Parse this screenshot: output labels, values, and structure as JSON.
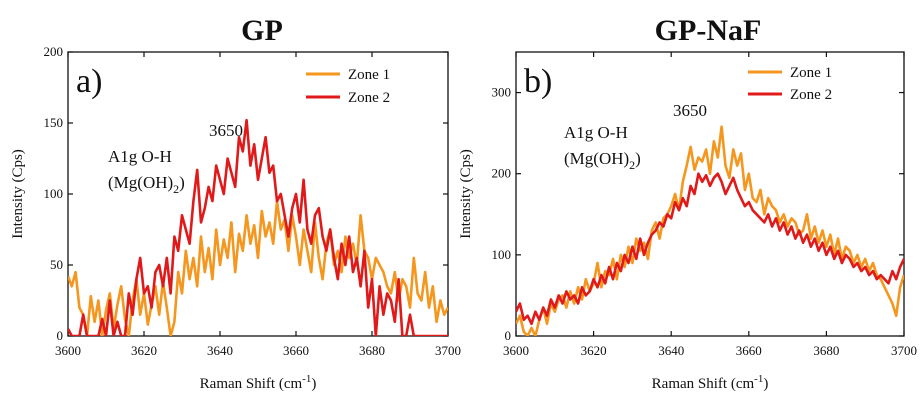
{
  "chart_data": [
    {
      "type": "line",
      "title": "GP",
      "panel_label": "a)",
      "xlabel": "Raman Shift (cm",
      "xlabel_sup": "-1",
      "xlabel_end": ")",
      "ylabel": "Intensity (Cps)",
      "xlim": [
        3600,
        3700
      ],
      "ylim": [
        0,
        200
      ],
      "xticks": [
        3600,
        3620,
        3640,
        3660,
        3680,
        3700
      ],
      "yticks": [
        0,
        50,
        100,
        150,
        200
      ],
      "legend_position": "top-right",
      "annotation_peak": "3650",
      "annotation_line1": "A1g O-H",
      "annotation_line2": "(Mg(OH)",
      "annotation_sub": "2",
      "annotation_close": ")",
      "series": [
        {
          "name": "Zone 1",
          "color": "#f5961e",
          "x": [
            3600,
            3601,
            3602,
            3603,
            3604,
            3605,
            3606,
            3607,
            3608,
            3609,
            3610,
            3611,
            3612,
            3613,
            3614,
            3615,
            3616,
            3617,
            3618,
            3619,
            3620,
            3621,
            3622,
            3623,
            3624,
            3625,
            3626,
            3627,
            3628,
            3629,
            3630,
            3631,
            3632,
            3633,
            3634,
            3635,
            3636,
            3637,
            3638,
            3639,
            3640,
            3641,
            3642,
            3643,
            3644,
            3645,
            3646,
            3647,
            3648,
            3649,
            3650,
            3651,
            3652,
            3653,
            3654,
            3655,
            3656,
            3657,
            3658,
            3659,
            3660,
            3661,
            3662,
            3663,
            3664,
            3665,
            3666,
            3667,
            3668,
            3669,
            3670,
            3671,
            3672,
            3673,
            3674,
            3675,
            3676,
            3677,
            3678,
            3679,
            3680,
            3681,
            3682,
            3683,
            3684,
            3685,
            3686,
            3687,
            3688,
            3689,
            3690,
            3691,
            3692,
            3693,
            3694,
            3695,
            3696,
            3697,
            3698,
            3699,
            3700
          ],
          "values": [
            42,
            35,
            45,
            20,
            15,
            0,
            28,
            10,
            25,
            0,
            18,
            30,
            5,
            22,
            35,
            12,
            0,
            25,
            40,
            15,
            30,
            8,
            22,
            35,
            15,
            38,
            20,
            0,
            10,
            45,
            30,
            60,
            40,
            55,
            35,
            70,
            45,
            62,
            40,
            75,
            50,
            68,
            55,
            80,
            45,
            72,
            60,
            85,
            65,
            78,
            55,
            88,
            70,
            80,
            65,
            95,
            75,
            82,
            60,
            85,
            70,
            50,
            75,
            60,
            45,
            80,
            55,
            40,
            65,
            75,
            50,
            60,
            45,
            70,
            55,
            65,
            50,
            85,
            60,
            55,
            40,
            55,
            50,
            45,
            35,
            30,
            45,
            25,
            40,
            35,
            20,
            55,
            30,
            25,
            45,
            20,
            35,
            10,
            25,
            15,
            20
          ]
        },
        {
          "name": "Zone 2",
          "color": "#e01a1a",
          "x": [
            3600,
            3601,
            3602,
            3603,
            3604,
            3605,
            3606,
            3607,
            3608,
            3609,
            3610,
            3611,
            3612,
            3613,
            3614,
            3615,
            3616,
            3617,
            3618,
            3619,
            3620,
            3621,
            3622,
            3623,
            3624,
            3625,
            3626,
            3627,
            3628,
            3629,
            3630,
            3631,
            3632,
            3633,
            3634,
            3635,
            3636,
            3637,
            3638,
            3639,
            3640,
            3641,
            3642,
            3643,
            3644,
            3645,
            3646,
            3647,
            3648,
            3649,
            3650,
            3651,
            3652,
            3653,
            3654,
            3655,
            3656,
            3657,
            3658,
            3659,
            3660,
            3661,
            3662,
            3663,
            3664,
            3665,
            3666,
            3667,
            3668,
            3669,
            3670,
            3671,
            3672,
            3673,
            3674,
            3675,
            3676,
            3677,
            3678,
            3679,
            3680,
            3681,
            3682,
            3683,
            3684,
            3685,
            3686,
            3687,
            3688,
            3689,
            3690,
            3691,
            3692,
            3693,
            3694,
            3695,
            3696,
            3697,
            3698,
            3699,
            3700
          ],
          "values": [
            5,
            0,
            0,
            0,
            15,
            0,
            0,
            0,
            0,
            12,
            0,
            25,
            0,
            10,
            0,
            0,
            30,
            15,
            40,
            55,
            30,
            35,
            20,
            45,
            50,
            35,
            55,
            30,
            70,
            60,
            85,
            75,
            65,
            95,
            117,
            80,
            90,
            105,
            95,
            120,
            110,
            100,
            125,
            115,
            105,
            140,
            130,
            152,
            120,
            135,
            110,
            125,
            140,
            115,
            120,
            95,
            100,
            85,
            70,
            90,
            100,
            80,
            110,
            75,
            65,
            85,
            90,
            70,
            60,
            75,
            55,
            40,
            65,
            50,
            70,
            45,
            55,
            35,
            60,
            20,
            40,
            0,
            35,
            15,
            30,
            25,
            10,
            40,
            0,
            0,
            15,
            0,
            0,
            0,
            0,
            0,
            0,
            0,
            0,
            0,
            0
          ]
        }
      ]
    },
    {
      "type": "line",
      "title": "GP-NaF",
      "panel_label": "b)",
      "xlabel": "Raman Shift (cm",
      "xlabel_sup": "-1",
      "xlabel_end": ")",
      "ylabel": "Intensity (Cps)",
      "xlim": [
        3600,
        3700
      ],
      "ylim": [
        0,
        350
      ],
      "xticks": [
        3600,
        3620,
        3640,
        3660,
        3680,
        3700
      ],
      "yticks": [
        0,
        100,
        200,
        300
      ],
      "legend_position": "top-right",
      "annotation_peak": "3650",
      "annotation_line1": "A1g O-H",
      "annotation_line2": "(Mg(OH)",
      "annotation_sub": "2",
      "annotation_close": ")",
      "series": [
        {
          "name": "Zone 1",
          "color": "#f5961e",
          "x": [
            3600,
            3601,
            3602,
            3603,
            3604,
            3605,
            3606,
            3607,
            3608,
            3609,
            3610,
            3611,
            3612,
            3613,
            3614,
            3615,
            3616,
            3617,
            3618,
            3619,
            3620,
            3621,
            3622,
            3623,
            3624,
            3625,
            3626,
            3627,
            3628,
            3629,
            3630,
            3631,
            3632,
            3633,
            3634,
            3635,
            3636,
            3637,
            3638,
            3639,
            3640,
            3641,
            3642,
            3643,
            3644,
            3645,
            3646,
            3647,
            3648,
            3649,
            3650,
            3651,
            3652,
            3653,
            3654,
            3655,
            3656,
            3657,
            3658,
            3659,
            3660,
            3661,
            3662,
            3663,
            3664,
            3665,
            3666,
            3667,
            3668,
            3669,
            3670,
            3671,
            3672,
            3673,
            3674,
            3675,
            3676,
            3677,
            3678,
            3679,
            3680,
            3681,
            3682,
            3683,
            3684,
            3685,
            3686,
            3687,
            3688,
            3689,
            3690,
            3691,
            3692,
            3693,
            3694,
            3695,
            3696,
            3697,
            3698,
            3699,
            3700
          ],
          "values": [
            15,
            25,
            5,
            0,
            10,
            0,
            20,
            35,
            15,
            40,
            30,
            45,
            50,
            35,
            55,
            40,
            60,
            45,
            70,
            55,
            65,
            90,
            60,
            80,
            75,
            95,
            70,
            100,
            85,
            110,
            90,
            120,
            105,
            115,
            95,
            130,
            140,
            120,
            145,
            150,
            160,
            175,
            155,
            190,
            210,
            233,
            205,
            220,
            215,
            230,
            200,
            240,
            220,
            258,
            210,
            195,
            230,
            210,
            225,
            180,
            200,
            170,
            165,
            180,
            150,
            170,
            160,
            155,
            140,
            150,
            135,
            145,
            140,
            125,
            130,
            150,
            120,
            135,
            115,
            130,
            110,
            125,
            100,
            120,
            95,
            110,
            105,
            90,
            100,
            85,
            95,
            80,
            90,
            75,
            70,
            60,
            50,
            40,
            25,
            60,
            75
          ]
        },
        {
          "name": "Zone 2",
          "color": "#e01a1a",
          "x": [
            3600,
            3601,
            3602,
            3603,
            3604,
            3605,
            3606,
            3607,
            3608,
            3609,
            3610,
            3611,
            3612,
            3613,
            3614,
            3615,
            3616,
            3617,
            3618,
            3619,
            3620,
            3621,
            3622,
            3623,
            3624,
            3625,
            3626,
            3627,
            3628,
            3629,
            3630,
            3631,
            3632,
            3633,
            3634,
            3635,
            3636,
            3637,
            3638,
            3639,
            3640,
            3641,
            3642,
            3643,
            3644,
            3645,
            3646,
            3647,
            3648,
            3649,
            3650,
            3651,
            3652,
            3653,
            3654,
            3655,
            3656,
            3657,
            3658,
            3659,
            3660,
            3661,
            3662,
            3663,
            3664,
            3665,
            3666,
            3667,
            3668,
            3669,
            3670,
            3671,
            3672,
            3673,
            3674,
            3675,
            3676,
            3677,
            3678,
            3679,
            3680,
            3681,
            3682,
            3683,
            3684,
            3685,
            3686,
            3687,
            3688,
            3689,
            3690,
            3691,
            3692,
            3693,
            3694,
            3695,
            3696,
            3697,
            3698,
            3699,
            3700
          ],
          "values": [
            30,
            40,
            20,
            25,
            15,
            30,
            20,
            35,
            25,
            45,
            35,
            50,
            40,
            55,
            45,
            50,
            40,
            60,
            50,
            55,
            70,
            60,
            75,
            65,
            85,
            70,
            90,
            80,
            100,
            90,
            110,
            95,
            120,
            100,
            115,
            125,
            130,
            140,
            135,
            150,
            145,
            165,
            155,
            170,
            160,
            185,
            175,
            200,
            190,
            198,
            185,
            195,
            200,
            190,
            175,
            185,
            195,
            180,
            170,
            160,
            165,
            155,
            150,
            145,
            140,
            150,
            135,
            145,
            130,
            140,
            125,
            135,
            120,
            130,
            115,
            125,
            110,
            120,
            105,
            115,
            100,
            110,
            95,
            105,
            90,
            100,
            95,
            85,
            90,
            80,
            85,
            75,
            80,
            70,
            75,
            70,
            65,
            80,
            70,
            85,
            95
          ]
        }
      ]
    }
  ]
}
